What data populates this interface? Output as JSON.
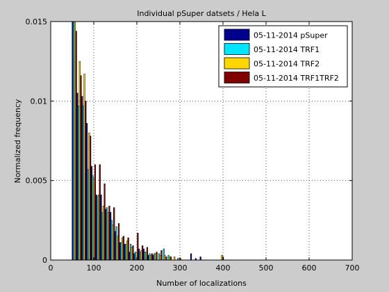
{
  "chart_data": {
    "type": "bar",
    "title": "Individual pSuper datsets / Hela L",
    "xlabel": "Number of localizations",
    "ylabel": "Normalized frequency",
    "xlim": [
      0,
      700
    ],
    "ylim": [
      0,
      0.015
    ],
    "xticks": [
      0,
      100,
      200,
      300,
      400,
      500,
      600,
      700
    ],
    "xtick_labels": [
      "0",
      "100",
      "200",
      "300",
      "400",
      "500",
      "600",
      "700"
    ],
    "yticks": [
      0,
      0.005,
      0.01,
      0.015
    ],
    "ytick_labels": [
      "0",
      "0.005",
      "0.01",
      "0.015"
    ],
    "grid": true,
    "legend_position": "top-right",
    "bin_centers": [
      55,
      66,
      77,
      88,
      99,
      110,
      121,
      132,
      143,
      154,
      165,
      176,
      187,
      198,
      209,
      220,
      231,
      242,
      253,
      264,
      275,
      286,
      297,
      330,
      341,
      352,
      363,
      396
    ],
    "series": [
      {
        "name": "05-11-2014 pSuper",
        "color": "#00008f",
        "values": [
          0.0153,
          0.0105,
          0.0103,
          0.0086,
          0.0059,
          0.0041,
          0.0041,
          0.0032,
          0.003,
          0.0018,
          0.0011,
          0.001,
          0.0005,
          0.0004,
          0.0007,
          0.0007,
          0.0003,
          0.0003,
          0,
          0,
          0,
          0,
          0,
          0.0004,
          0.0001,
          0.0002,
          0,
          0
        ]
      },
      {
        "name": "05-11-2014 TRF1",
        "color": "#00e5ff",
        "values": [
          0.0153,
          0.0097,
          0.0097,
          0.0057,
          0.0053,
          0.004,
          0.003,
          0.0033,
          0.0025,
          0.0021,
          0.0011,
          0.001,
          0.001,
          0.0005,
          0.0005,
          0.0005,
          0.0004,
          0.0004,
          0.0004,
          0.0007,
          0.0003,
          0,
          0.0001,
          0,
          0,
          0,
          0,
          0
        ]
      },
      {
        "name": "05-11-2014 TRF2",
        "color": "#ffd700",
        "values": [
          0.0153,
          0.0125,
          0.0117,
          0.008,
          0.0051,
          0.0041,
          0.0034,
          0.003,
          0.0022,
          0.0015,
          0.0014,
          0.0012,
          0.0008,
          0.0005,
          0.0006,
          0.0005,
          0.0003,
          0.0004,
          0.0003,
          0.0003,
          0.0002,
          0.0002,
          0.0001,
          0,
          0,
          0,
          0,
          0.0003
        ]
      },
      {
        "name": "05-11-2014 TRF1TRF2",
        "color": "#800000",
        "values": [
          0.0144,
          0.0116,
          0.01,
          0.0078,
          0.006,
          0.006,
          0.0048,
          0.0034,
          0.0033,
          0.0023,
          0.0015,
          0.0014,
          0.0009,
          0.0017,
          0.0009,
          0.0008,
          0.0004,
          0.0005,
          0.0006,
          0.0002,
          0.0002,
          0,
          0.0001,
          0,
          0,
          0,
          0,
          0.0002
        ]
      }
    ]
  }
}
